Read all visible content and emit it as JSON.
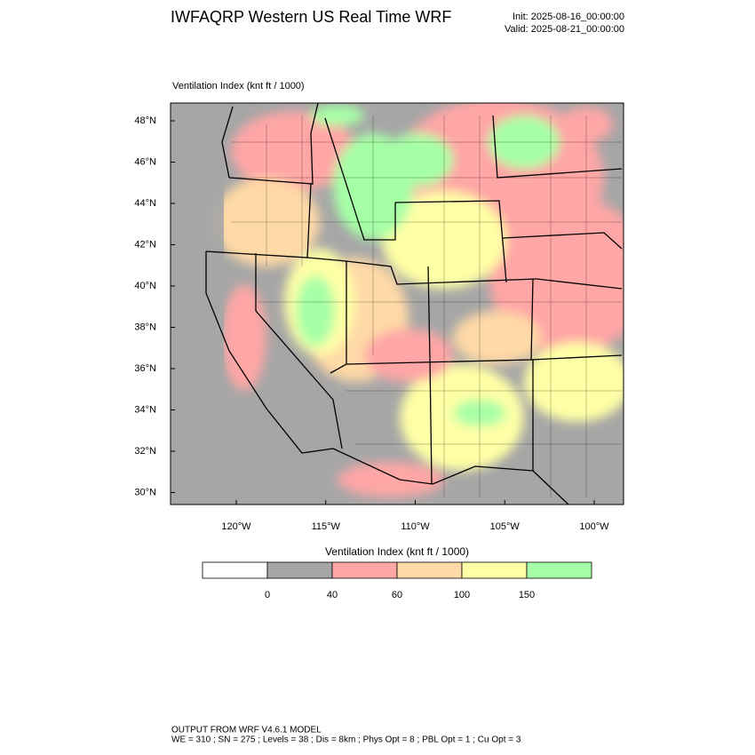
{
  "header": {
    "title": "IWFAQRP Western US Real Time WRF",
    "init": "Init: 2025-08-16_00:00:00",
    "valid": "Valid: 2025-08-21_00:00:00"
  },
  "map": {
    "label": "Ventilation Index   (knt ft / 1000)",
    "lat_labels": [
      "48°N",
      "46°N",
      "44°N",
      "42°N",
      "40°N",
      "38°N",
      "36°N",
      "34°N",
      "32°N",
      "30°N"
    ],
    "lon_labels": [
      "120°W",
      "115°W",
      "110°W",
      "105°W",
      "100°W"
    ]
  },
  "colorbar": {
    "title": "Ventilation Index   (knt ft / 1000)",
    "colors": [
      "#ffffff",
      "#a6a6a6",
      "#ffa6a6",
      "#ffd9a6",
      "#ffffa6",
      "#a6ffa6"
    ],
    "tick_labels": [
      "0",
      "40",
      "60",
      "100",
      "150"
    ]
  },
  "footer": {
    "line1": "OUTPUT FROM WRF V4.6.1 MODEL",
    "line2": "WE = 310 ; SN = 275 ; Levels = 38 ; Dis = 8km ; Phys Opt = 8 ; PBL Opt = 1 ; Cu Opt = 3"
  }
}
